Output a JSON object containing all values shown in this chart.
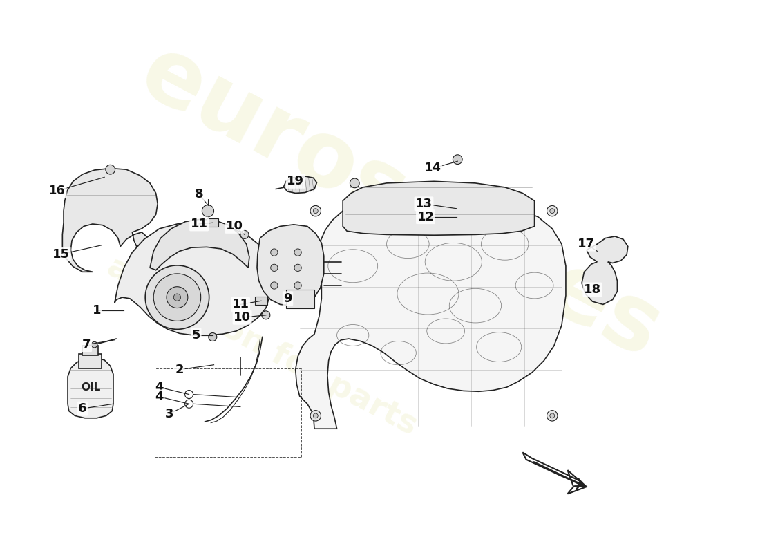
{
  "background_color": "#ffffff",
  "watermark_text1": "eurospares",
  "watermark_text2": "a passion for parts",
  "line_color": "#222222",
  "annotation_fontsize": 13
}
